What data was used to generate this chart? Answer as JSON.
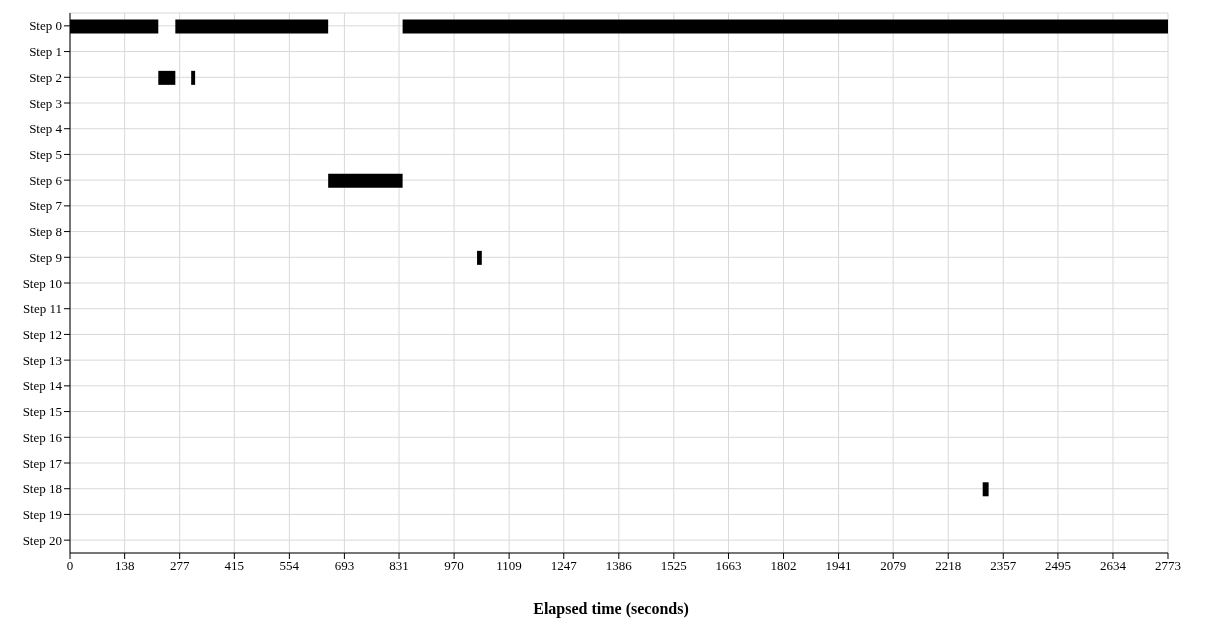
{
  "chart_data": {
    "type": "bar",
    "orientation": "horizontal",
    "xlabel": "Elapsed time (seconds)",
    "categories": [
      "Step 0",
      "Step 1",
      "Step 2",
      "Step 3",
      "Step 4",
      "Step 5",
      "Step 6",
      "Step 7",
      "Step 8",
      "Step 9",
      "Step 10",
      "Step 11",
      "Step 12",
      "Step 13",
      "Step 14",
      "Step 15",
      "Step 16",
      "Step 17",
      "Step 18",
      "Step 19",
      "Step 20"
    ],
    "series": [
      {
        "color": "#000000",
        "base": [
          0,
          null,
          223,
          null,
          null,
          null,
          652,
          null,
          null,
          null,
          null,
          null,
          null,
          null,
          null,
          null,
          null,
          null,
          2305,
          null,
          null
        ],
        "values": [
          223,
          null,
          43,
          null,
          null,
          null,
          188,
          null,
          null,
          null,
          null,
          null,
          null,
          null,
          null,
          null,
          null,
          null,
          15,
          null,
          null
        ]
      },
      {
        "color": "#000000",
        "base": [
          266,
          null,
          306,
          null,
          null,
          null,
          null,
          null,
          null,
          1028,
          null,
          null,
          null,
          null,
          null,
          null,
          null,
          null,
          null,
          null,
          null
        ],
        "values": [
          386,
          null,
          10,
          null,
          null,
          null,
          null,
          null,
          null,
          12,
          null,
          null,
          null,
          null,
          null,
          null,
          null,
          null,
          null,
          null,
          null
        ]
      },
      {
        "color": "#000000",
        "base": [
          840,
          null,
          null,
          null,
          null,
          null,
          null,
          null,
          null,
          null,
          null,
          null,
          null,
          null,
          null,
          null,
          null,
          null,
          null,
          null,
          null
        ],
        "values": [
          1933,
          null,
          null,
          null,
          null,
          null,
          null,
          null,
          null,
          null,
          null,
          null,
          null,
          null,
          null,
          null,
          null,
          null,
          null,
          null,
          null
        ]
      }
    ],
    "xlim": [
      0,
      2773
    ],
    "xticks": [
      0,
      138,
      277,
      415,
      554,
      693,
      831,
      970,
      1109,
      1247,
      1386,
      1525,
      1663,
      1802,
      1941,
      2079,
      2218,
      2357,
      2495,
      2634,
      2773
    ],
    "grid": true
  }
}
